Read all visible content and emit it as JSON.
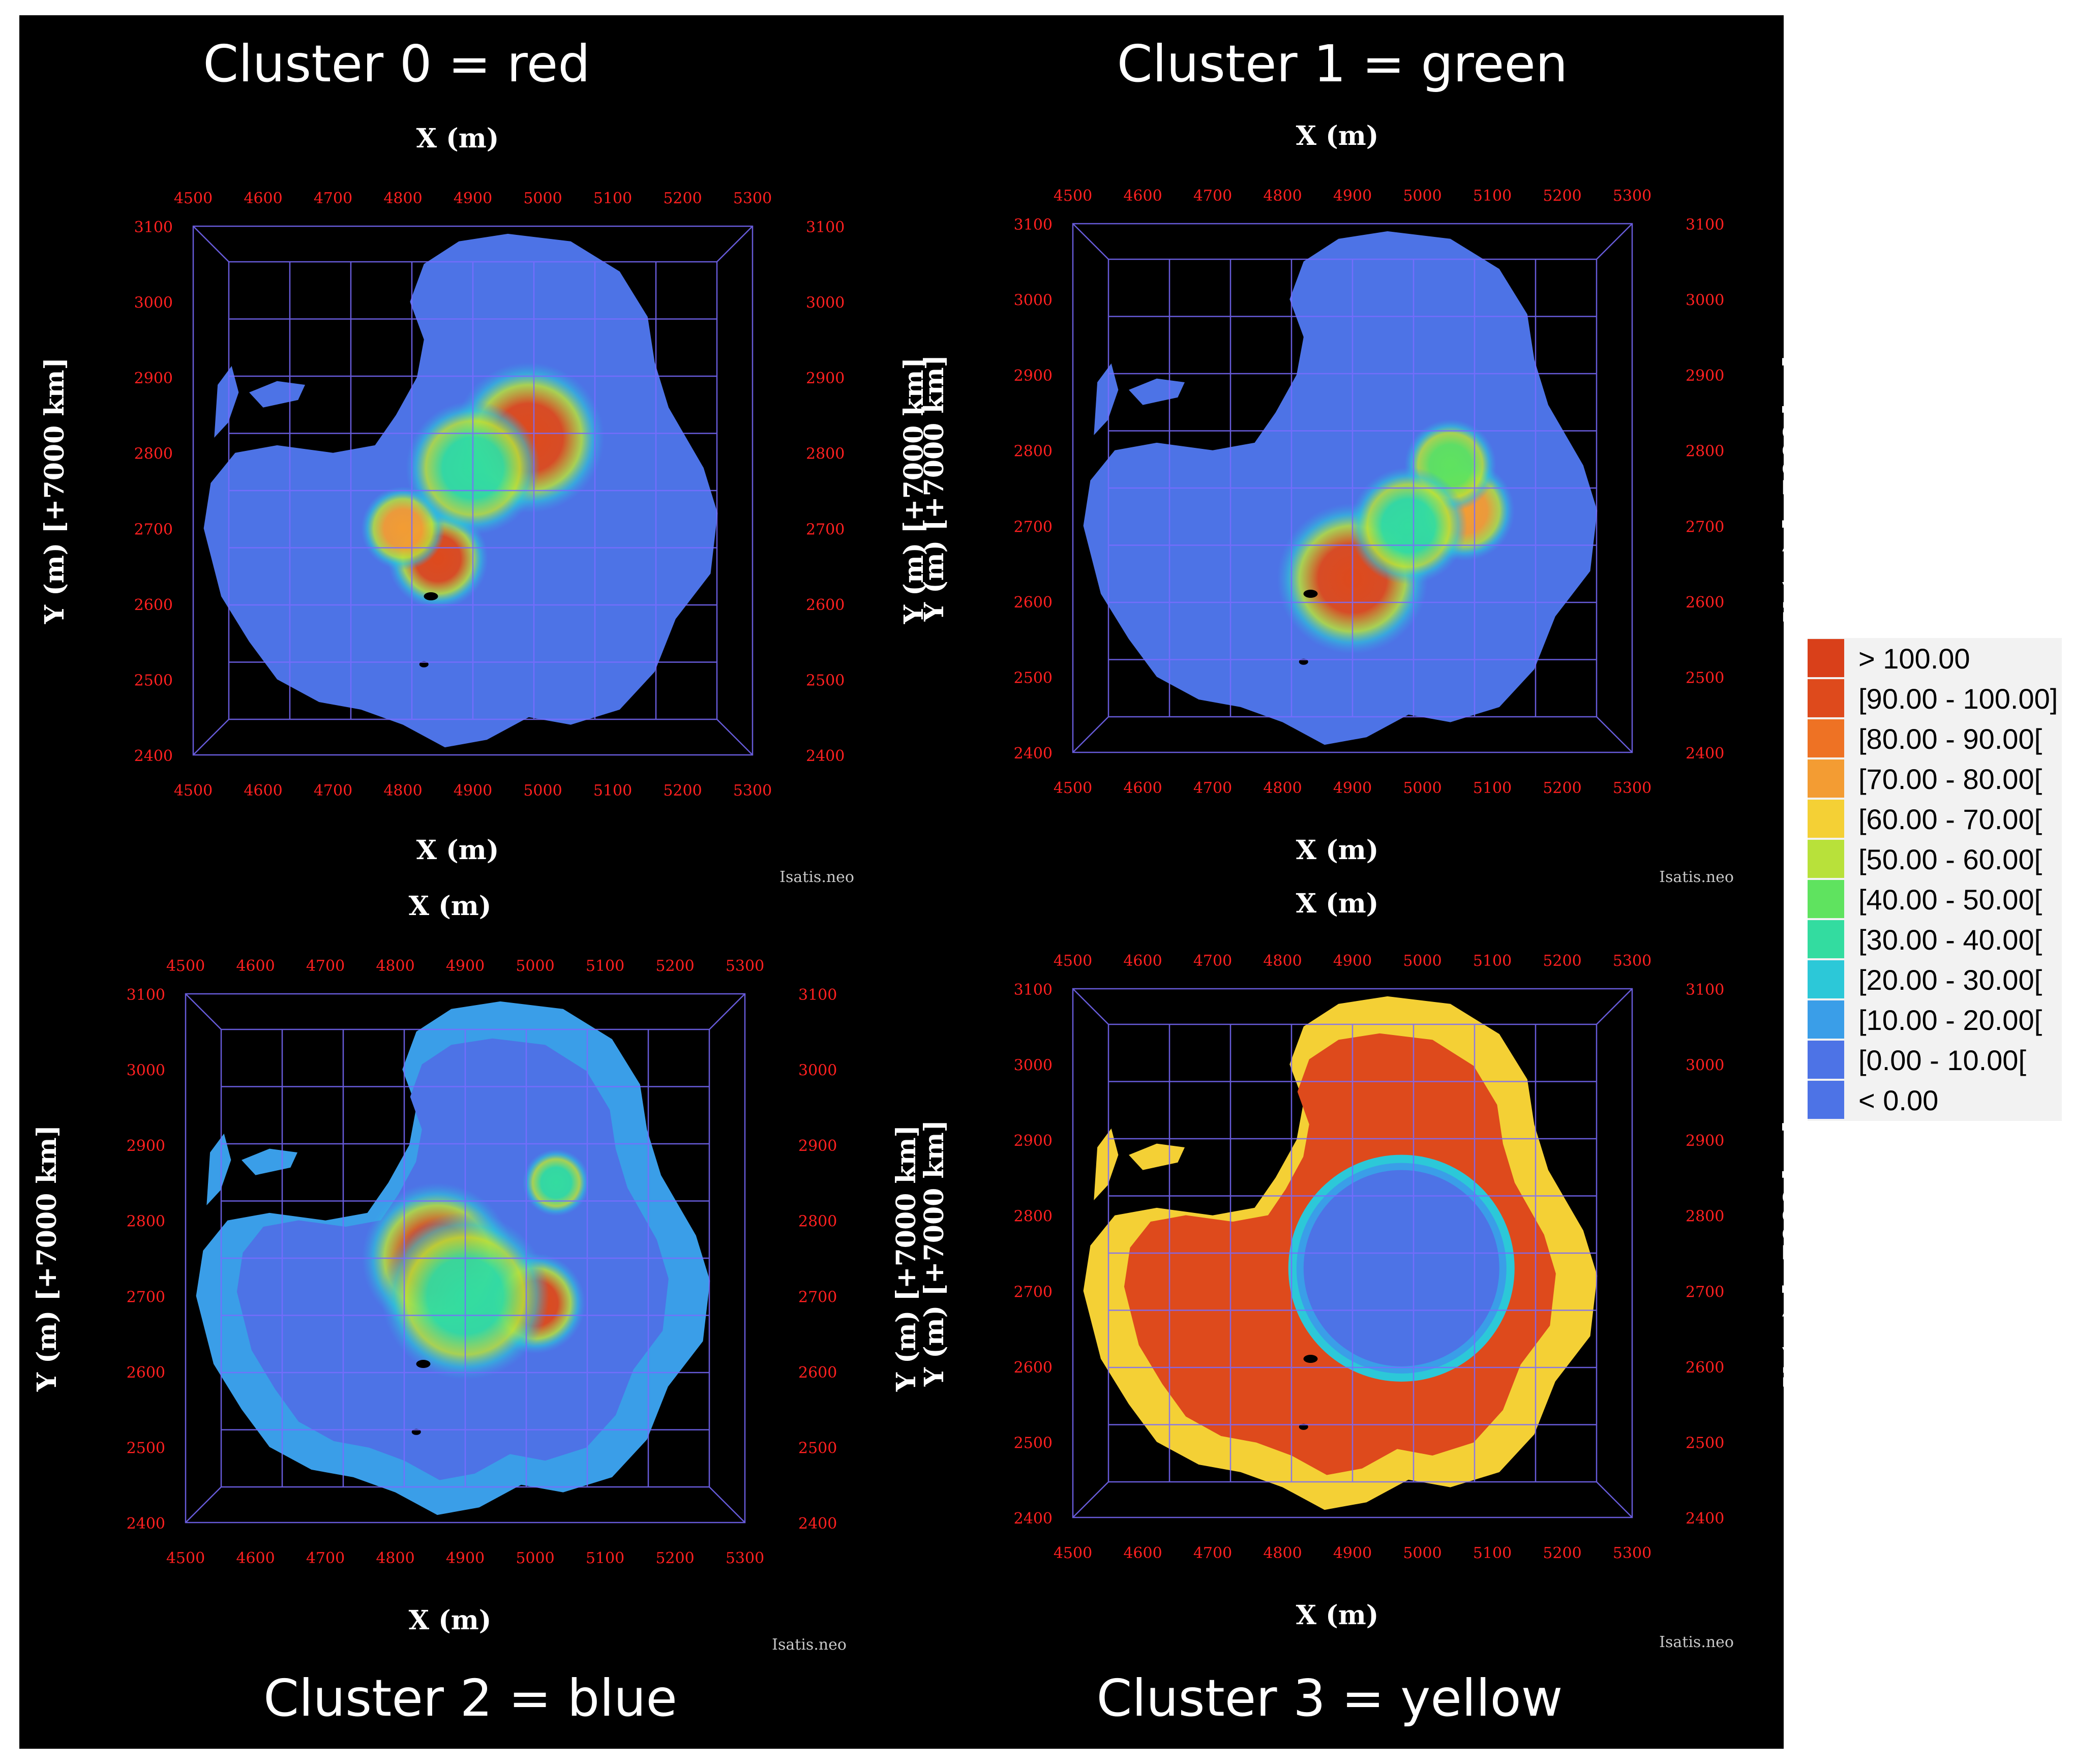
{
  "chart_data": [
    {
      "type": "heatmap",
      "title": "Cluster 0 =  red",
      "xlabel": "X (m)",
      "ylabel": "Y (m) [+7000 km]",
      "x_ticks": [
        "4500",
        "4600",
        "4700",
        "4800",
        "4900",
        "5000",
        "5100",
        "5200",
        "5300"
      ],
      "y_ticks": [
        "2400",
        "2500",
        "2600",
        "2700",
        "2800",
        "2900",
        "3000",
        "3100"
      ],
      "xlim": [
        4500,
        5300
      ],
      "ylim": [
        2400,
        3100
      ],
      "background_class": "[0.00 - 10.00[",
      "hotspots": [
        {
          "x": 4980,
          "y": 2820,
          "r": 90,
          "level": 95
        },
        {
          "x": 4850,
          "y": 2660,
          "r": 60,
          "level": 90
        },
        {
          "x": 4800,
          "y": 2700,
          "r": 50,
          "level": 75
        },
        {
          "x": 4900,
          "y": 2780,
          "r": 80,
          "level": 35
        }
      ]
    },
    {
      "type": "heatmap",
      "title": "Cluster 1 =  green",
      "xlabel": "X (m)",
      "ylabel": "Y (m) [+7000 km]",
      "x_ticks": [
        "4500",
        "4600",
        "4700",
        "4800",
        "4900",
        "5000",
        "5100",
        "5200",
        "5300"
      ],
      "y_ticks": [
        "2400",
        "2500",
        "2600",
        "2700",
        "2800",
        "2900",
        "3000",
        "3100"
      ],
      "xlim": [
        4500,
        5300
      ],
      "ylim": [
        2400,
        3100
      ],
      "background_class": "[0.00 - 10.00[",
      "hotspots": [
        {
          "x": 4900,
          "y": 2630,
          "r": 90,
          "level": 95
        },
        {
          "x": 5060,
          "y": 2720,
          "r": 60,
          "level": 75
        },
        {
          "x": 5040,
          "y": 2780,
          "r": 55,
          "level": 40
        },
        {
          "x": 4980,
          "y": 2700,
          "r": 70,
          "level": 35
        }
      ]
    },
    {
      "type": "heatmap",
      "title": "Cluster 2 =  blue",
      "xlabel": "X (m)",
      "ylabel": "Y (m) [+7000 km]",
      "x_ticks": [
        "4500",
        "4600",
        "4700",
        "4800",
        "4900",
        "5000",
        "5100",
        "5200",
        "5300"
      ],
      "y_ticks": [
        "2400",
        "2500",
        "2600",
        "2700",
        "2800",
        "2900",
        "3000",
        "3100"
      ],
      "xlim": [
        4500,
        5300
      ],
      "ylim": [
        2400,
        3100
      ],
      "background_class": "[0.00 - 10.00[",
      "rim_class": "[10.00 - 20.00[",
      "hotspots": [
        {
          "x": 4860,
          "y": 2750,
          "r": 90,
          "level": 90
        },
        {
          "x": 5000,
          "y": 2690,
          "r": 60,
          "level": 90
        },
        {
          "x": 4900,
          "y": 2700,
          "r": 100,
          "level": 35
        },
        {
          "x": 5030,
          "y": 2850,
          "r": 40,
          "level": 35
        }
      ]
    },
    {
      "type": "heatmap",
      "title": "Cluster 3 =  yellow",
      "xlabel": "X (m)",
      "ylabel": "Y (m) [+7000 km]",
      "x_ticks": [
        "4500",
        "4600",
        "4700",
        "4800",
        "4900",
        "5000",
        "5100",
        "5200",
        "5300"
      ],
      "y_ticks": [
        "2400",
        "2500",
        "2600",
        "2700",
        "2800",
        "2900",
        "3000",
        "3100"
      ],
      "xlim": [
        4500,
        5300
      ],
      "ylim": [
        2400,
        3100
      ],
      "background_class": "[90.00 - 100.00]",
      "rim_class": "[60.00 - 70.00[",
      "core_class": "[0.00 - 10.00[",
      "core": {
        "x": 4970,
        "y": 2730,
        "rx": 140,
        "ry": 130
      }
    }
  ],
  "legend": [
    {
      "label": "> 100.00",
      "color": "#d9401a"
    },
    {
      "label": "[90.00 - 100.00]",
      "color": "#de4a1c"
    },
    {
      "label": "[80.00 - 90.00[",
      "color": "#ee7224"
    },
    {
      "label": "[70.00 - 80.00[",
      "color": "#f39c33"
    },
    {
      "label": "[60.00 - 70.00[",
      "color": "#f4d035"
    },
    {
      "label": "[50.00 - 60.00[",
      "color": "#b8e13a"
    },
    {
      "label": "[40.00 - 50.00[",
      "color": "#5fe35f"
    },
    {
      "label": "[30.00 - 40.00[",
      "color": "#33dca0"
    },
    {
      "label": "[20.00 - 30.00[",
      "color": "#2cc8d8"
    },
    {
      "label": "[10.00 - 20.00[",
      "color": "#3a9ee8"
    },
    {
      "label": "[0.00 - 10.00[",
      "color": "#4d73e6"
    },
    {
      "label": "< 0.00",
      "color": "#4d73e6"
    }
  ],
  "watermark": "Isatis.neo"
}
